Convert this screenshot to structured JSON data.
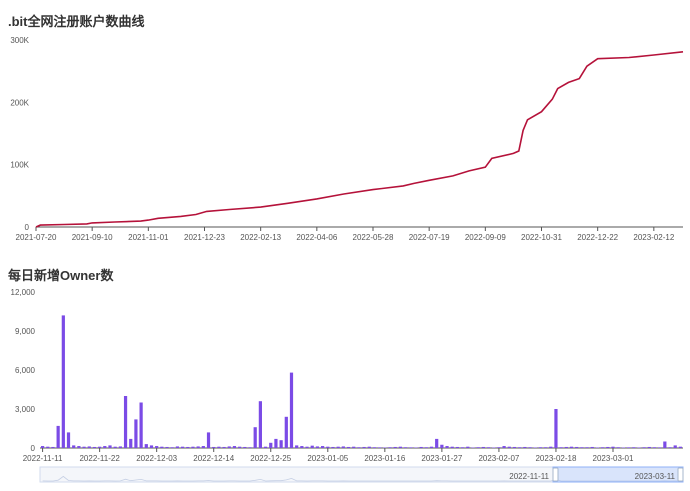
{
  "chart_data": [
    {
      "type": "line",
      "title": ".bit全网注册账户数曲线",
      "xlabel": "",
      "ylabel": "",
      "y_ticks": [
        "0",
        "100K",
        "200K",
        "300K"
      ],
      "ylim": [
        0,
        300000
      ],
      "x_tick_labels": [
        "2021-07-20",
        "2021-09-10",
        "2021-11-01",
        "2021-12-23",
        "2022-02-13",
        "2022-04-06",
        "2022-05-28",
        "2022-07-19",
        "2022-09-09",
        "2022-10-31",
        "2022-12-22",
        "2023-02-12"
      ],
      "xlim": [
        "2021-07-20",
        "2023-03-11"
      ],
      "series_color": "#b5123a",
      "grid": false,
      "points": [
        [
          "2021-07-20",
          0
        ],
        [
          "2021-07-24",
          3000
        ],
        [
          "2021-08-15",
          4000
        ],
        [
          "2021-09-05",
          5000
        ],
        [
          "2021-09-10",
          6500
        ],
        [
          "2021-10-01",
          8000
        ],
        [
          "2021-10-25",
          9500
        ],
        [
          "2021-11-01",
          11000
        ],
        [
          "2021-11-10",
          14000
        ],
        [
          "2021-12-01",
          17000
        ],
        [
          "2021-12-15",
          20000
        ],
        [
          "2021-12-25",
          25000
        ],
        [
          "2022-01-15",
          28000
        ],
        [
          "2022-02-13",
          32000
        ],
        [
          "2022-03-10",
          38000
        ],
        [
          "2022-04-06",
          45000
        ],
        [
          "2022-05-01",
          53000
        ],
        [
          "2022-05-28",
          60000
        ],
        [
          "2022-06-25",
          66000
        ],
        [
          "2022-07-05",
          70000
        ],
        [
          "2022-07-19",
          75000
        ],
        [
          "2022-08-10",
          82000
        ],
        [
          "2022-08-25",
          90000
        ],
        [
          "2022-09-09",
          96000
        ],
        [
          "2022-09-15",
          110000
        ],
        [
          "2022-10-05",
          118000
        ],
        [
          "2022-10-10",
          122000
        ],
        [
          "2022-10-14",
          155000
        ],
        [
          "2022-10-18",
          172000
        ],
        [
          "2022-10-31",
          185000
        ],
        [
          "2022-11-10",
          205000
        ],
        [
          "2022-11-15",
          222000
        ],
        [
          "2022-11-25",
          232000
        ],
        [
          "2022-12-05",
          238000
        ],
        [
          "2022-12-12",
          258000
        ],
        [
          "2022-12-22",
          270000
        ],
        [
          "2023-01-20",
          272000
        ],
        [
          "2023-02-12",
          276000
        ],
        [
          "2023-03-11",
          281000
        ]
      ]
    },
    {
      "type": "bar",
      "title": "每日新增Owner数",
      "xlabel": "",
      "ylabel": "",
      "y_ticks": [
        "0",
        "3,000",
        "6,000",
        "9,000",
        "12,000"
      ],
      "ylim": [
        0,
        12000
      ],
      "x_tick_labels": [
        "2022-11-11",
        "2022-11-22",
        "2022-12-03",
        "2022-12-14",
        "2022-12-25",
        "2023-01-05",
        "2023-01-16",
        "2023-01-27",
        "2023-02-07",
        "2023-02-18",
        "2023-03-01"
      ],
      "start_date": "2022-11-11",
      "bar_color": "#7b4be6",
      "grid": false,
      "values": [
        150,
        100,
        80,
        1700,
        10200,
        1200,
        200,
        150,
        100,
        120,
        80,
        100,
        150,
        200,
        100,
        120,
        4000,
        700,
        2200,
        3500,
        300,
        200,
        150,
        100,
        80,
        60,
        120,
        100,
        80,
        100,
        120,
        150,
        1200,
        80,
        100,
        80,
        120,
        150,
        100,
        80,
        60,
        1600,
        3600,
        100,
        400,
        700,
        600,
        2400,
        5800,
        200,
        150,
        100,
        180,
        120,
        150,
        100,
        80,
        100,
        120,
        80,
        100,
        60,
        80,
        100,
        60,
        50,
        40,
        60,
        80,
        100,
        60,
        50,
        40,
        80,
        60,
        100,
        700,
        250,
        150,
        100,
        80,
        60,
        100,
        40,
        60,
        80,
        60,
        40,
        60,
        150,
        100,
        80,
        60,
        80,
        60,
        40,
        60,
        60,
        100,
        3000,
        60,
        80,
        100,
        80,
        60,
        60,
        80,
        40,
        60,
        80,
        100,
        60,
        40,
        50,
        60,
        40,
        60,
        80,
        60,
        50,
        500,
        60,
        200,
        100
      ],
      "datazoom": {
        "start_label": "2022-11-11",
        "end_label": "2023-03-11"
      }
    }
  ]
}
